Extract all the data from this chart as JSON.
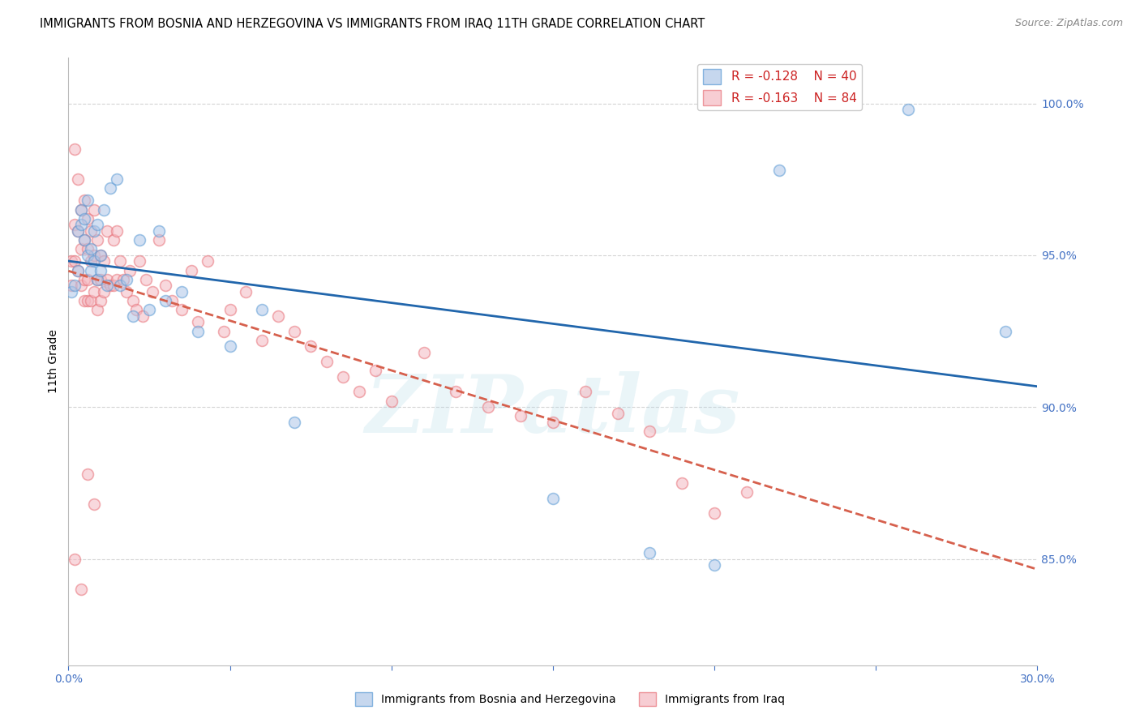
{
  "title": "IMMIGRANTS FROM BOSNIA AND HERZEGOVINA VS IMMIGRANTS FROM IRAQ 11TH GRADE CORRELATION CHART",
  "source": "Source: ZipAtlas.com",
  "ylabel": "11th Grade",
  "y_tick_labels": [
    "100.0%",
    "95.0%",
    "90.0%",
    "85.0%"
  ],
  "y_tick_values": [
    1.0,
    0.95,
    0.9,
    0.85
  ],
  "xlim": [
    0.0,
    0.3
  ],
  "ylim": [
    0.815,
    1.015
  ],
  "legend_blue_R": "R = -0.128",
  "legend_blue_N": "N = 40",
  "legend_pink_R": "R = -0.163",
  "legend_pink_N": "N = 84",
  "blue_color": "#aec6e8",
  "pink_color": "#f4b8c1",
  "blue_edge_color": "#5b9bd5",
  "pink_edge_color": "#e8737a",
  "trend_blue_color": "#2166ac",
  "trend_pink_color": "#d6604d",
  "blue_scatter_x": [
    0.001,
    0.002,
    0.003,
    0.003,
    0.004,
    0.004,
    0.005,
    0.005,
    0.006,
    0.006,
    0.007,
    0.007,
    0.008,
    0.008,
    0.009,
    0.009,
    0.01,
    0.01,
    0.011,
    0.012,
    0.013,
    0.015,
    0.016,
    0.018,
    0.02,
    0.022,
    0.025,
    0.028,
    0.03,
    0.035,
    0.04,
    0.05,
    0.06,
    0.07,
    0.15,
    0.18,
    0.2,
    0.22,
    0.26,
    0.29
  ],
  "blue_scatter_y": [
    0.938,
    0.94,
    0.958,
    0.945,
    0.96,
    0.965,
    0.955,
    0.962,
    0.95,
    0.968,
    0.952,
    0.945,
    0.958,
    0.948,
    0.942,
    0.96,
    0.945,
    0.95,
    0.965,
    0.94,
    0.972,
    0.975,
    0.94,
    0.942,
    0.93,
    0.955,
    0.932,
    0.958,
    0.935,
    0.938,
    0.925,
    0.92,
    0.932,
    0.895,
    0.87,
    0.852,
    0.848,
    0.978,
    0.998,
    0.925
  ],
  "pink_scatter_x": [
    0.001,
    0.001,
    0.002,
    0.002,
    0.002,
    0.003,
    0.003,
    0.003,
    0.004,
    0.004,
    0.004,
    0.005,
    0.005,
    0.005,
    0.005,
    0.006,
    0.006,
    0.006,
    0.006,
    0.007,
    0.007,
    0.007,
    0.008,
    0.008,
    0.008,
    0.009,
    0.009,
    0.009,
    0.01,
    0.01,
    0.01,
    0.011,
    0.011,
    0.012,
    0.012,
    0.013,
    0.014,
    0.014,
    0.015,
    0.015,
    0.016,
    0.017,
    0.018,
    0.019,
    0.02,
    0.021,
    0.022,
    0.023,
    0.024,
    0.026,
    0.028,
    0.03,
    0.032,
    0.035,
    0.038,
    0.04,
    0.043,
    0.048,
    0.05,
    0.055,
    0.06,
    0.065,
    0.07,
    0.075,
    0.08,
    0.085,
    0.09,
    0.095,
    0.1,
    0.11,
    0.12,
    0.13,
    0.14,
    0.15,
    0.16,
    0.17,
    0.18,
    0.19,
    0.2,
    0.21,
    0.002,
    0.004,
    0.006,
    0.008
  ],
  "pink_scatter_y": [
    0.94,
    0.948,
    0.985,
    0.96,
    0.948,
    0.975,
    0.958,
    0.945,
    0.965,
    0.952,
    0.94,
    0.968,
    0.955,
    0.942,
    0.935,
    0.962,
    0.952,
    0.942,
    0.935,
    0.958,
    0.948,
    0.935,
    0.965,
    0.95,
    0.938,
    0.955,
    0.942,
    0.932,
    0.95,
    0.942,
    0.935,
    0.948,
    0.938,
    0.958,
    0.942,
    0.94,
    0.955,
    0.94,
    0.958,
    0.942,
    0.948,
    0.942,
    0.938,
    0.945,
    0.935,
    0.932,
    0.948,
    0.93,
    0.942,
    0.938,
    0.955,
    0.94,
    0.935,
    0.932,
    0.945,
    0.928,
    0.948,
    0.925,
    0.932,
    0.938,
    0.922,
    0.93,
    0.925,
    0.92,
    0.915,
    0.91,
    0.905,
    0.912,
    0.902,
    0.918,
    0.905,
    0.9,
    0.897,
    0.895,
    0.905,
    0.898,
    0.892,
    0.875,
    0.865,
    0.872,
    0.85,
    0.84,
    0.878,
    0.868
  ],
  "watermark_text": "ZIPatlas",
  "background_color": "#ffffff",
  "grid_color": "#d0d0d0",
  "axis_label_color": "#4472c4",
  "title_fontsize": 10.5,
  "tick_fontsize": 10,
  "legend_fontsize": 11,
  "marker_size": 100,
  "marker_alpha": 0.55,
  "marker_linewidth": 1.2
}
